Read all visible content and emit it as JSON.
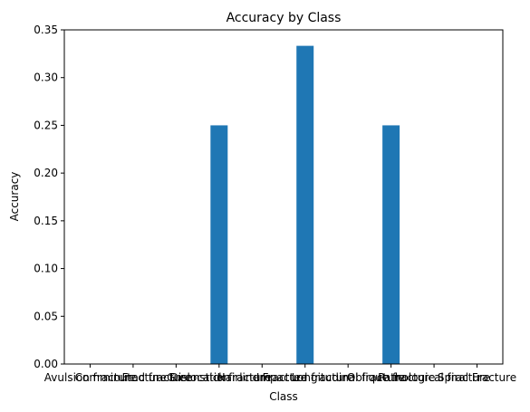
{
  "chart_data": {
    "type": "bar",
    "title": "Accuracy by Class",
    "xlabel": "Class",
    "ylabel": "Accuracy",
    "categories": [
      "Avulsion fracture",
      "Comminuted fracture",
      "Fracture Dislocation",
      "Greenstick fracture",
      "Hairline Fracture",
      "Impacted fracture",
      "Longitudinal fracture",
      "Oblique fracture",
      "Pathological fracture",
      "Spiral Fracture"
    ],
    "values": [
      0,
      0,
      0,
      0.25,
      0,
      0.3333,
      0,
      0.25,
      0,
      0
    ],
    "ylim": [
      0,
      0.35
    ],
    "yticks": [
      "0.00",
      "0.05",
      "0.10",
      "0.15",
      "0.20",
      "0.25",
      "0.30",
      "0.35"
    ],
    "grid": false,
    "legend": "none",
    "bar_color": "#1f77b4"
  }
}
